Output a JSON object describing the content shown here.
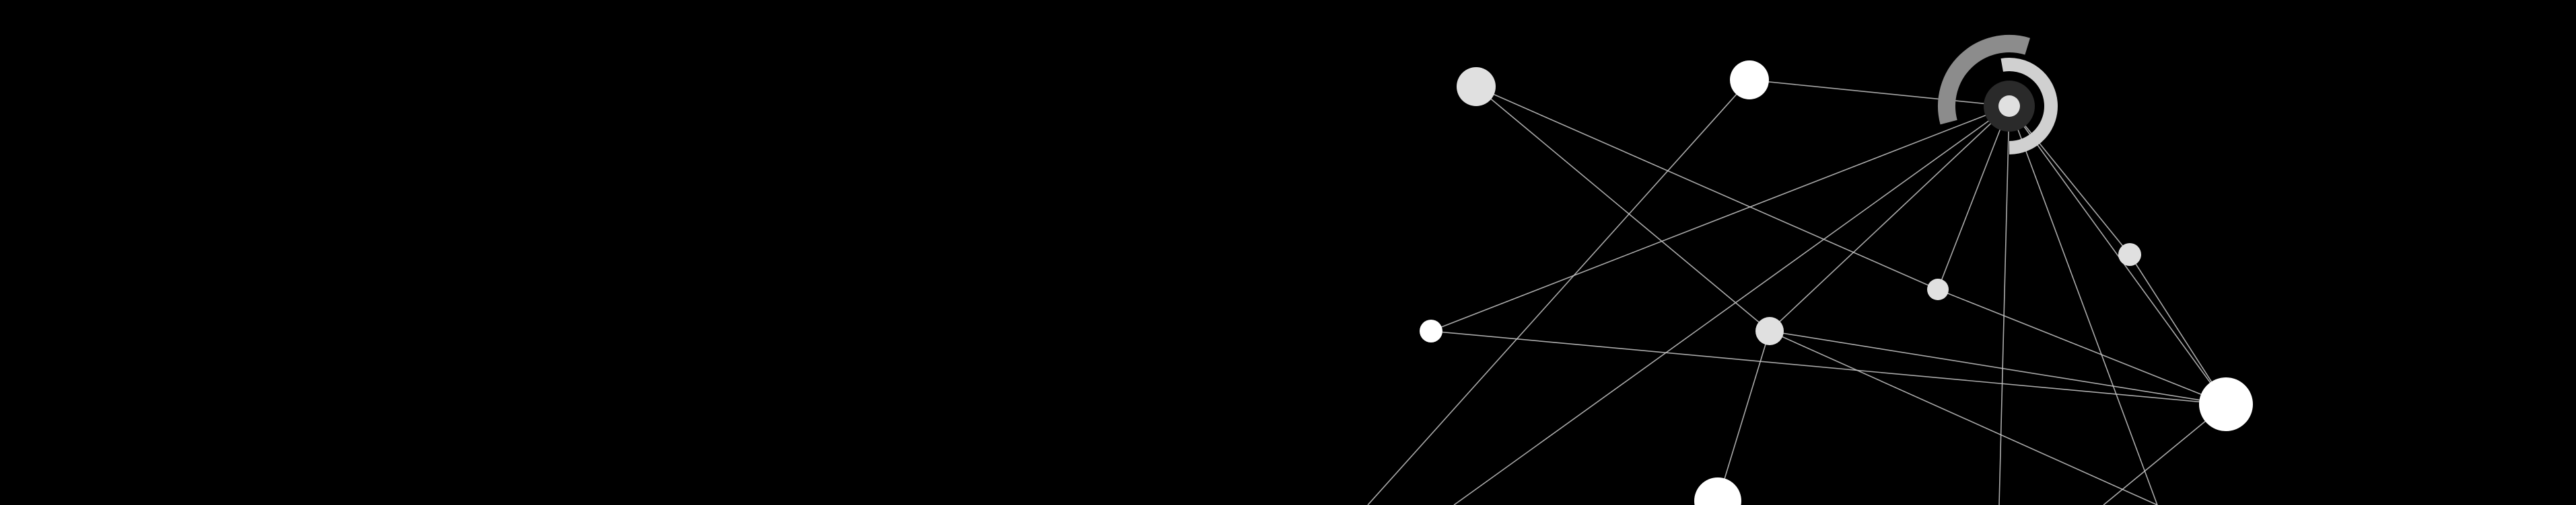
{
  "colors": {
    "background": "#000000",
    "edge": "#c8c8c8",
    "node_light": "#e0e0e0",
    "node_white": "#ffffff",
    "ring_outer": "#8c8c8c",
    "ring_inner": "#d0d0d0",
    "hub_core": "#2a2a2a"
  },
  "graph": {
    "nodes": [
      {
        "id": "hub",
        "kind": "hub"
      },
      {
        "id": "n1",
        "kind": "light"
      },
      {
        "id": "n2",
        "kind": "white"
      },
      {
        "id": "n3",
        "kind": "light"
      },
      {
        "id": "n4",
        "kind": "light"
      },
      {
        "id": "n5",
        "kind": "white"
      },
      {
        "id": "n6",
        "kind": "light"
      },
      {
        "id": "n7",
        "kind": "white"
      },
      {
        "id": "n8",
        "kind": "white"
      }
    ],
    "edges": [
      [
        "n2",
        "hub"
      ],
      [
        "n1",
        "n6"
      ],
      [
        "n1",
        "n4"
      ],
      [
        "n2",
        "offLeft1"
      ],
      [
        "hub",
        "n3"
      ],
      [
        "hub",
        "n4"
      ],
      [
        "hub",
        "n5"
      ],
      [
        "hub",
        "n6"
      ],
      [
        "hub",
        "n7"
      ],
      [
        "hub",
        "offLeft2"
      ],
      [
        "hub",
        "offBottom1"
      ],
      [
        "hub",
        "offBottom2"
      ],
      [
        "n3",
        "n7"
      ],
      [
        "n4",
        "n7"
      ],
      [
        "n5",
        "n7"
      ],
      [
        "n6",
        "n7"
      ],
      [
        "n6",
        "n8"
      ],
      [
        "n6",
        "offBottom2"
      ],
      [
        "n7",
        "offBottom3"
      ]
    ]
  }
}
